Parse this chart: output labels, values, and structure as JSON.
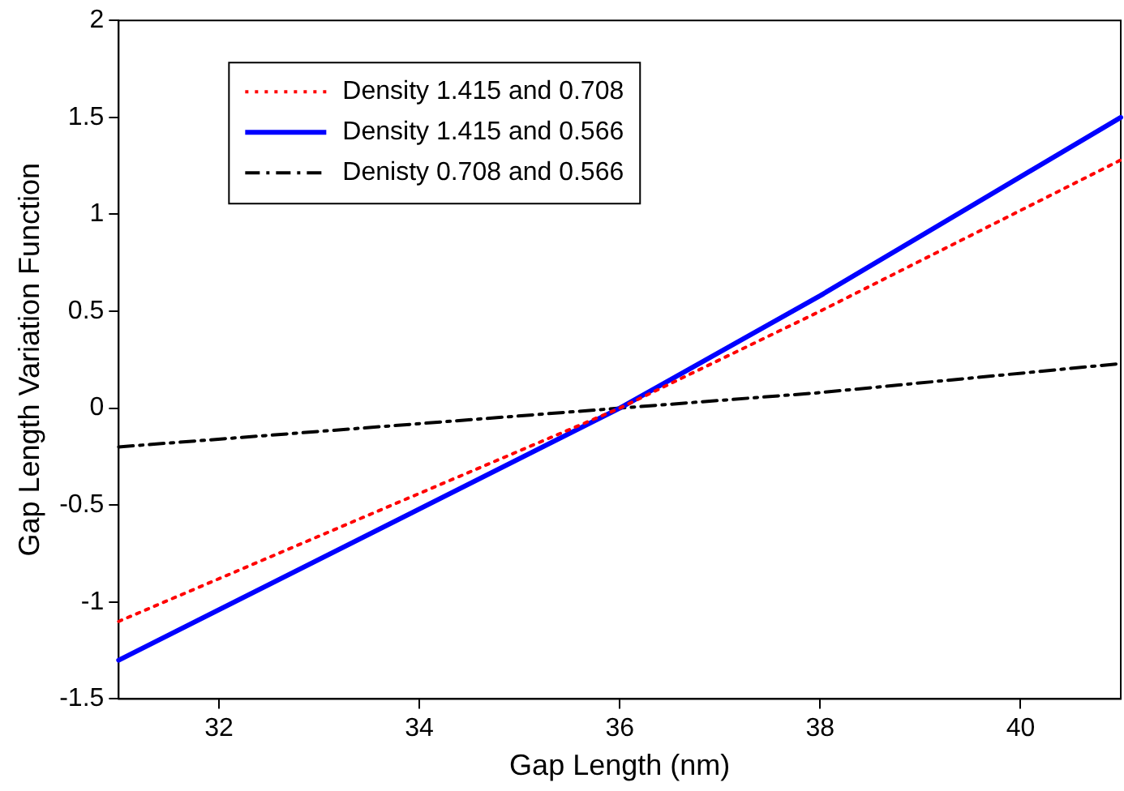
{
  "chart_data": {
    "type": "line",
    "xlabel": "Gap Length (nm)",
    "ylabel": "Gap Length Variation Function",
    "xlim": [
      31,
      41
    ],
    "xticks": [
      32,
      34,
      36,
      38,
      40
    ],
    "ylim": [
      -1.5,
      2
    ],
    "yticks": [
      -1.5,
      -1,
      -0.5,
      0,
      0.5,
      1,
      1.5,
      2
    ],
    "grid": false,
    "legend": "top left",
    "marker": "none",
    "series": [
      {
        "name": "Density 1.415 and 0.708",
        "color": "#ff0000",
        "line_style": "dotted",
        "x": [
          31,
          36,
          38,
          41
        ],
        "values": [
          -1.1,
          0,
          0.5,
          1.28
        ]
      },
      {
        "name": "Density 1.415 and 0.566",
        "color": "#0000ff",
        "line_style": "solid",
        "x": [
          31,
          36,
          38,
          41
        ],
        "values": [
          -1.3,
          0,
          0.58,
          1.5
        ]
      },
      {
        "name": "Denisty 0.708 and 0.566",
        "color": "#000000",
        "line_style": "dashdot",
        "x": [
          31,
          36,
          38,
          41
        ],
        "values": [
          -0.2,
          0,
          0.08,
          0.23
        ]
      }
    ]
  }
}
